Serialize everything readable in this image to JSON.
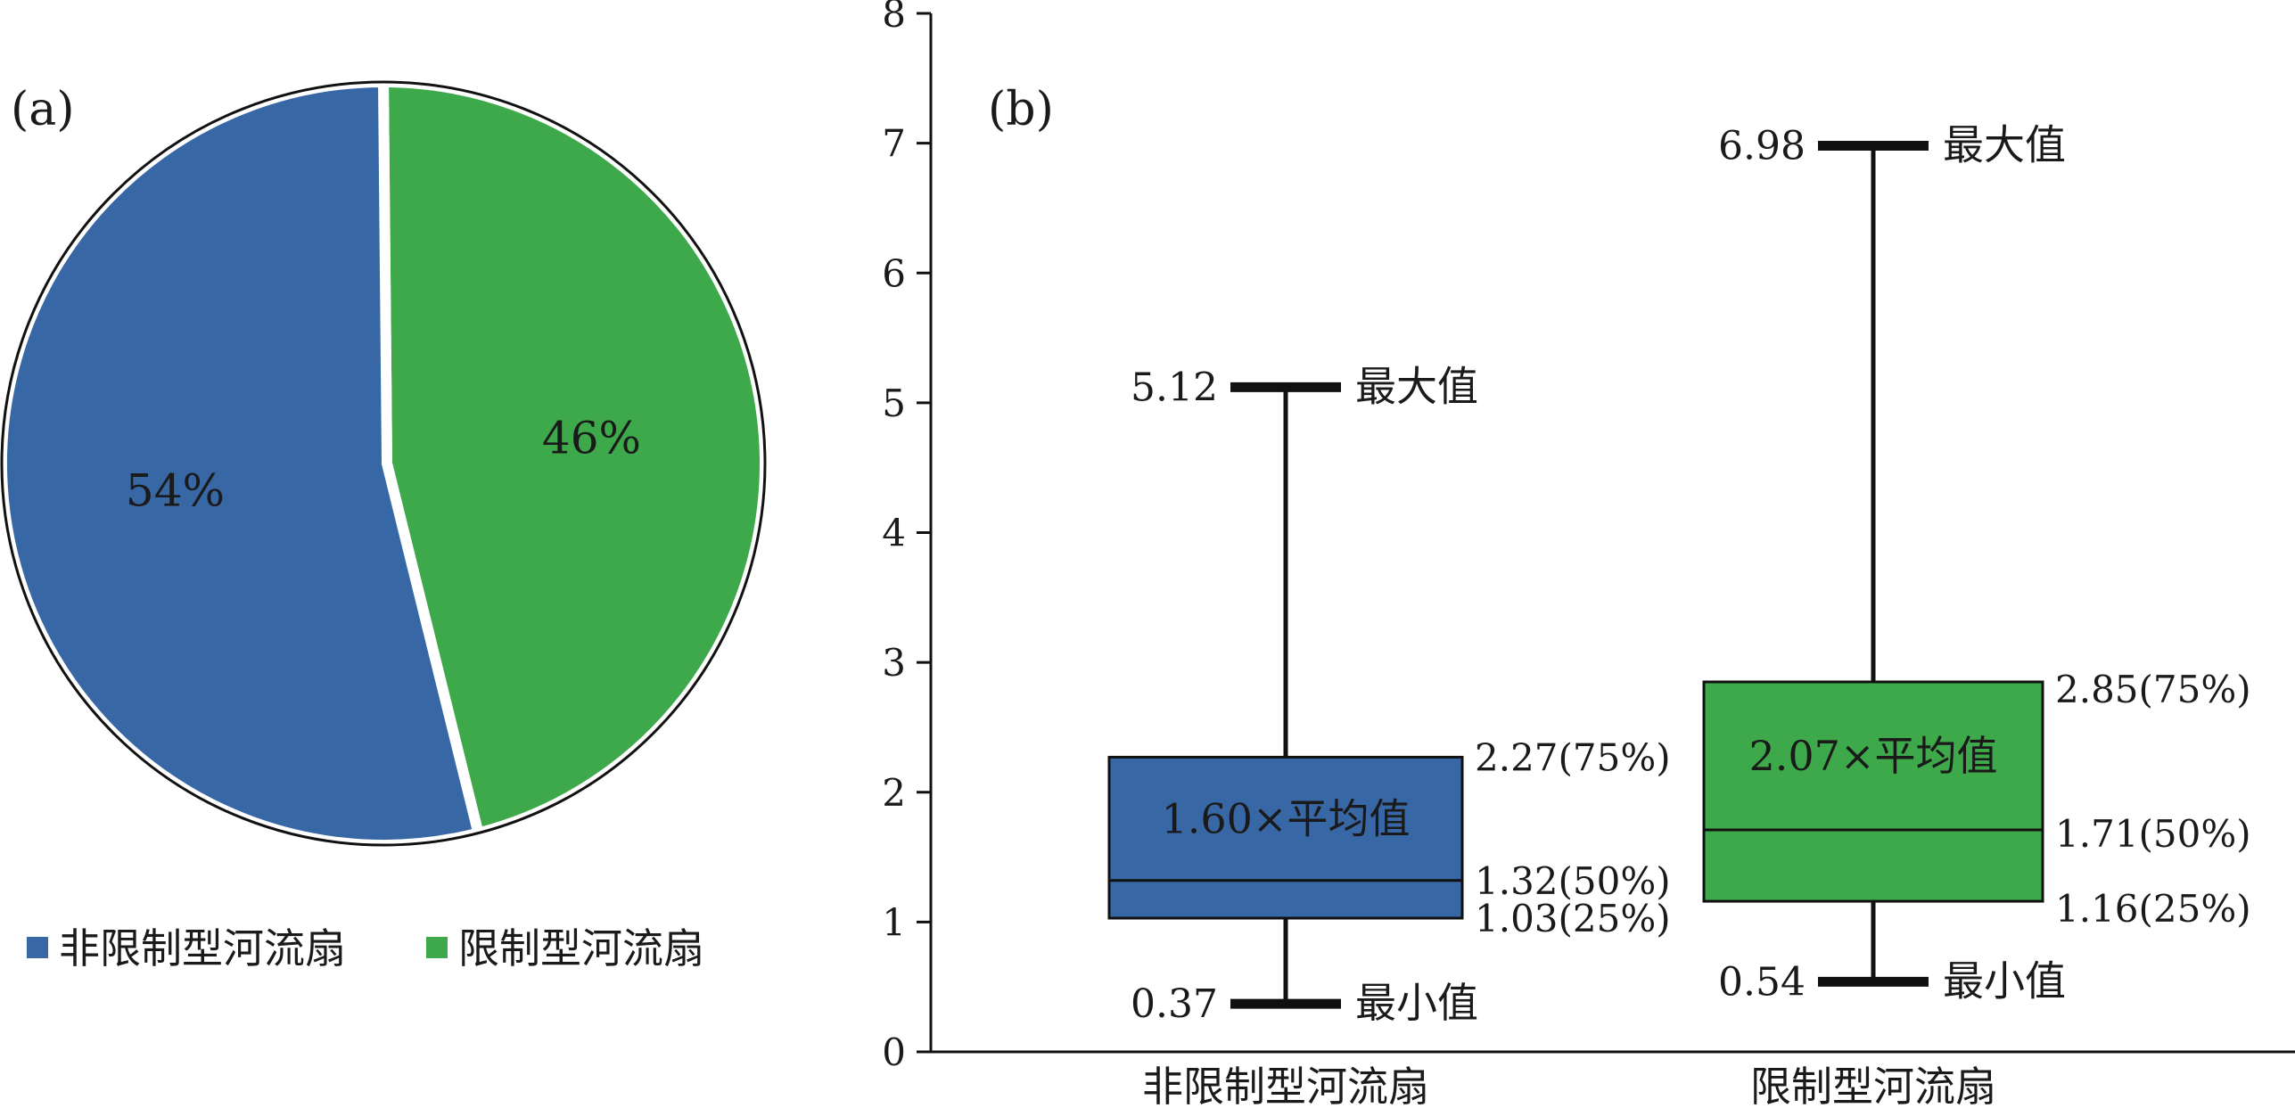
{
  "chart_data": [
    {
      "panel_label": "(a)",
      "type": "pie",
      "slices": [
        {
          "name": "非限制型河流扇",
          "value": 54,
          "label": "54%",
          "color": "#3867a6"
        },
        {
          "name": "限制型河流扇",
          "value": 46,
          "label": "46%",
          "color": "#3ea94b"
        }
      ],
      "legend": {
        "position": "bottom"
      }
    },
    {
      "panel_label": "(b)",
      "type": "box",
      "categories": [
        "非限制型河流扇",
        "限制型河流扇"
      ],
      "ylim": [
        0,
        8
      ],
      "yticks": [
        "0",
        "1",
        "2",
        "3",
        "4",
        "5",
        "6",
        "7",
        "8"
      ],
      "boxes": [
        {
          "category": "非限制型河流扇",
          "color": "#3867a6",
          "min": 0.37,
          "q1": 1.03,
          "median": 1.32,
          "q3": 2.27,
          "max": 5.12,
          "mean": 1.6,
          "labels": {
            "min": "0.37",
            "max": "5.12",
            "q1": "1.03(25%)",
            "median": "1.32(50%)",
            "q3": "2.27(75%)",
            "mean": "1.60×平均值",
            "min_word": "最小值",
            "max_word": "最大值"
          }
        },
        {
          "category": "限制型河流扇",
          "color": "#3ea94b",
          "min": 0.54,
          "q1": 1.16,
          "median": 1.71,
          "q3": 2.85,
          "max": 6.98,
          "mean": 2.07,
          "labels": {
            "min": "0.54",
            "max": "6.98",
            "q1": "1.16(25%)",
            "median": "1.71(50%)",
            "q3": "2.85(75%)",
            "mean": "2.07×平均值",
            "min_word": "最小值",
            "max_word": "最大值"
          }
        }
      ]
    }
  ]
}
